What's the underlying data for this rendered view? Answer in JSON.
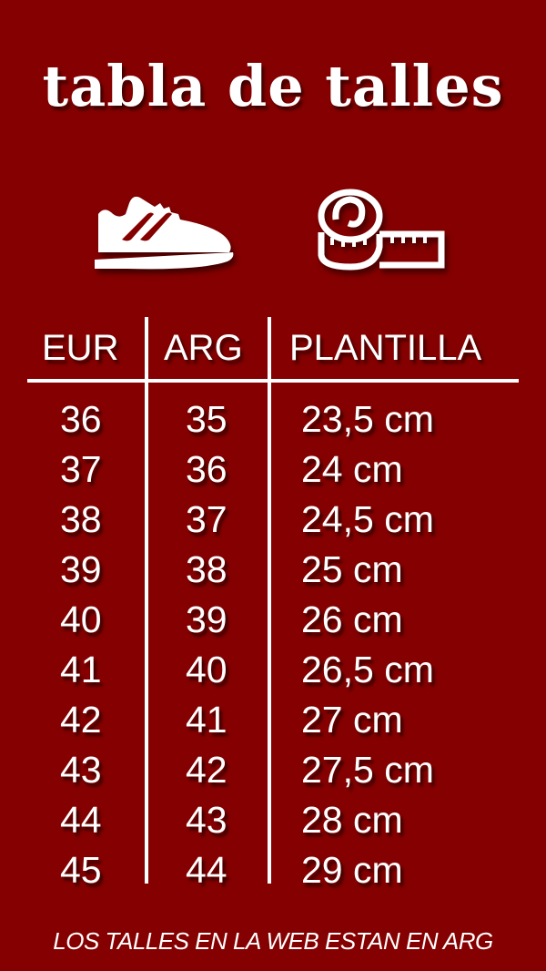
{
  "title": "tabla de talles",
  "icons": [
    "sneaker-icon",
    "measuring-tape-icon"
  ],
  "colors": {
    "background": "#850000",
    "foreground": "#ffffff"
  },
  "table": {
    "headers": [
      "EUR",
      "ARG",
      "PLANTILLA"
    ],
    "rows": [
      [
        "36",
        "35",
        "23,5 cm"
      ],
      [
        "37",
        "36",
        "24 cm"
      ],
      [
        "38",
        "37",
        "24,5 cm"
      ],
      [
        "39",
        "38",
        "25 cm"
      ],
      [
        "40",
        "39",
        "26 cm"
      ],
      [
        "41",
        "40",
        "26,5 cm"
      ],
      [
        "42",
        "41",
        "27 cm"
      ],
      [
        "43",
        "42",
        "27,5 cm"
      ],
      [
        "44",
        "43",
        "28 cm"
      ],
      [
        "45",
        "44",
        "29 cm"
      ]
    ]
  },
  "footer": "LOS TALLES EN LA WEB ESTAN EN ARG"
}
